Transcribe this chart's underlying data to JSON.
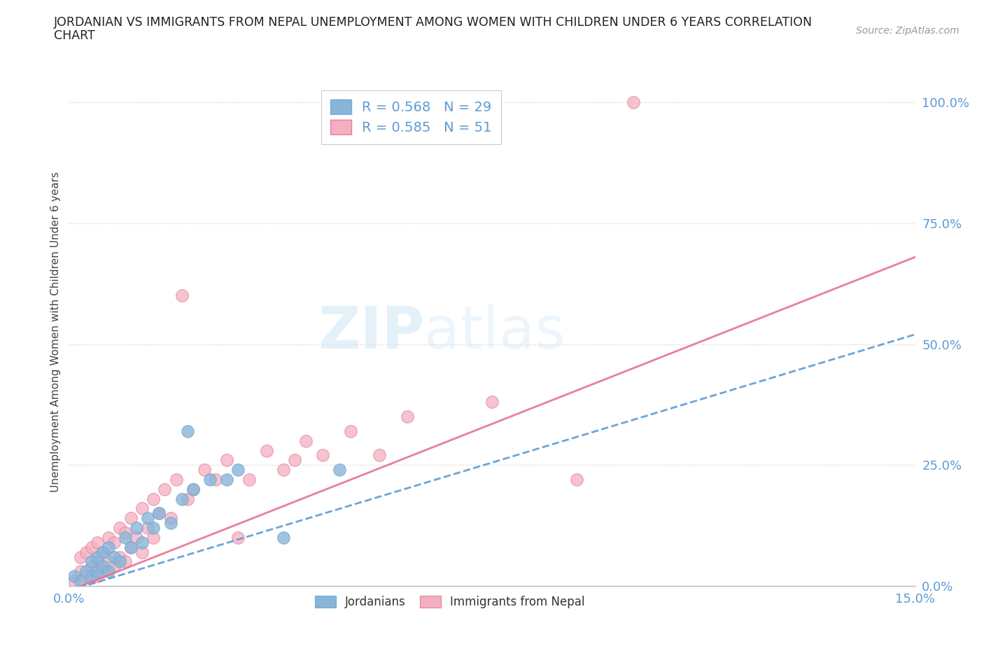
{
  "title_line1": "JORDANIAN VS IMMIGRANTS FROM NEPAL UNEMPLOYMENT AMONG WOMEN WITH CHILDREN UNDER 6 YEARS CORRELATION",
  "title_line2": "CHART",
  "source": "Source: ZipAtlas.com",
  "ylabel": "Unemployment Among Women with Children Under 6 years",
  "xlim": [
    0.0,
    0.15
  ],
  "ylim": [
    0.0,
    1.05
  ],
  "ytick_vals": [
    0.0,
    0.25,
    0.5,
    0.75,
    1.0
  ],
  "ytick_labels": [
    "0.0%",
    "25.0%",
    "50.0%",
    "75.0%",
    "100.0%"
  ],
  "xtick_vals": [
    0.0,
    0.03,
    0.06,
    0.09,
    0.12,
    0.15
  ],
  "xtick_labels": [
    "0.0%",
    "",
    "",
    "",
    "",
    "15.0%"
  ],
  "jordanian_color": "#8ab4d8",
  "jordanian_edge": "#6baed6",
  "nepal_color": "#f4afc0",
  "nepal_edge": "#e87fa0",
  "line_jord_color": "#5b9bd5",
  "line_nepal_color": "#e87090",
  "jordanian_R": 0.568,
  "jordanian_N": 29,
  "nepal_R": 0.585,
  "nepal_N": 51,
  "background_color": "#ffffff",
  "watermark_color": "#d4e8f5",
  "jordanian_x": [
    0.001,
    0.002,
    0.003,
    0.004,
    0.004,
    0.005,
    0.005,
    0.006,
    0.006,
    0.007,
    0.007,
    0.008,
    0.009,
    0.01,
    0.011,
    0.012,
    0.013,
    0.014,
    0.015,
    0.016,
    0.018,
    0.02,
    0.021,
    0.022,
    0.025,
    0.028,
    0.03,
    0.038,
    0.048
  ],
  "jordanian_y": [
    0.02,
    0.01,
    0.03,
    0.02,
    0.05,
    0.03,
    0.06,
    0.04,
    0.07,
    0.03,
    0.08,
    0.06,
    0.05,
    0.1,
    0.08,
    0.12,
    0.09,
    0.14,
    0.12,
    0.15,
    0.13,
    0.18,
    0.32,
    0.2,
    0.22,
    0.22,
    0.24,
    0.1,
    0.24
  ],
  "nepal_x": [
    0.001,
    0.002,
    0.002,
    0.003,
    0.003,
    0.004,
    0.004,
    0.005,
    0.005,
    0.005,
    0.006,
    0.006,
    0.007,
    0.007,
    0.008,
    0.008,
    0.009,
    0.009,
    0.01,
    0.01,
    0.011,
    0.011,
    0.012,
    0.013,
    0.013,
    0.014,
    0.015,
    0.015,
    0.016,
    0.017,
    0.018,
    0.019,
    0.02,
    0.021,
    0.022,
    0.024,
    0.026,
    0.028,
    0.03,
    0.032,
    0.035,
    0.038,
    0.04,
    0.042,
    0.045,
    0.05,
    0.055,
    0.06,
    0.075,
    0.09,
    0.1
  ],
  "nepal_y": [
    0.01,
    0.03,
    0.06,
    0.02,
    0.07,
    0.04,
    0.08,
    0.02,
    0.05,
    0.09,
    0.03,
    0.07,
    0.05,
    0.1,
    0.04,
    0.09,
    0.06,
    0.12,
    0.05,
    0.11,
    0.08,
    0.14,
    0.1,
    0.07,
    0.16,
    0.12,
    0.1,
    0.18,
    0.15,
    0.2,
    0.14,
    0.22,
    0.6,
    0.18,
    0.2,
    0.24,
    0.22,
    0.26,
    0.1,
    0.22,
    0.28,
    0.24,
    0.26,
    0.3,
    0.27,
    0.32,
    0.27,
    0.35,
    0.38,
    0.22,
    1.0
  ],
  "legend_label_jordanian": "Jordanians",
  "legend_label_nepal": "Immigrants from Nepal",
  "jord_line_x0": 0.0,
  "jord_line_y0": -0.01,
  "jord_line_x1": 0.15,
  "jord_line_y1": 0.52,
  "nepal_line_x0": 0.0,
  "nepal_line_y0": -0.01,
  "nepal_line_x1": 0.15,
  "nepal_line_y1": 0.68
}
